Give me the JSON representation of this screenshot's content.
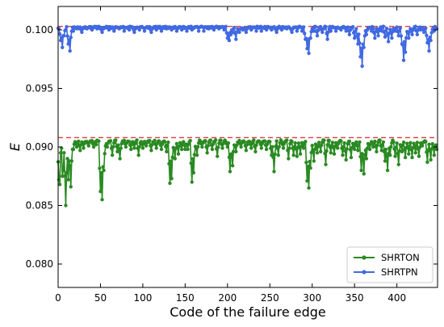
{
  "chart_data": {
    "type": "line",
    "title": "",
    "xlabel": "Code of the failure edge",
    "ylabel": "E",
    "xlim": [
      0,
      448
    ],
    "ylim": [
      0.078,
      0.102
    ],
    "x_ticks": [
      "0",
      "50",
      "100",
      "150",
      "200",
      "250",
      "300",
      "350",
      "400"
    ],
    "y_ticks": [
      "0.080",
      "0.085",
      "0.090",
      "0.095",
      "0.100"
    ],
    "grid": false,
    "legend_position": "lower-right",
    "reference_lines": [
      {
        "y": 0.1003,
        "color": "#e03c3c",
        "style": "dashed"
      },
      {
        "y": 0.0908,
        "color": "#e03c3c",
        "style": "dashed"
      }
    ],
    "series": [
      {
        "name": "SHRTON",
        "color": "#2a8a22",
        "baseline": 0.0906,
        "x_count": 448,
        "dips": [
          [
            1,
            0.0872
          ],
          [
            2,
            0.0868
          ],
          [
            3,
            0.0895
          ],
          [
            4,
            0.0899
          ],
          [
            5,
            0.0875
          ],
          [
            6,
            0.088
          ],
          [
            7,
            0.0895
          ],
          [
            9,
            0.085
          ],
          [
            10,
            0.0878
          ],
          [
            11,
            0.089
          ],
          [
            12,
            0.0872
          ],
          [
            13,
            0.0888
          ],
          [
            15,
            0.0866
          ],
          [
            18,
            0.0898
          ],
          [
            22,
            0.09
          ],
          [
            26,
            0.0897
          ],
          [
            30,
            0.0899
          ],
          [
            36,
            0.0901
          ],
          [
            42,
            0.09
          ],
          [
            45,
            0.0902
          ],
          [
            50,
            0.0862
          ],
          [
            52,
            0.0855
          ],
          [
            54,
            0.088
          ],
          [
            58,
            0.09
          ],
          [
            64,
            0.0893
          ],
          [
            70,
            0.0896
          ],
          [
            73,
            0.089
          ],
          [
            80,
            0.09
          ],
          [
            86,
            0.0898
          ],
          [
            90,
            0.0899
          ],
          [
            95,
            0.0893
          ],
          [
            100,
            0.0899
          ],
          [
            104,
            0.0901
          ],
          [
            110,
            0.0897
          ],
          [
            116,
            0.0899
          ],
          [
            122,
            0.0898
          ],
          [
            128,
            0.0896
          ],
          [
            132,
            0.0869
          ],
          [
            134,
            0.0873
          ],
          [
            138,
            0.089
          ],
          [
            142,
            0.0894
          ],
          [
            146,
            0.0898
          ],
          [
            150,
            0.0898
          ],
          [
            153,
            0.0898
          ],
          [
            158,
            0.087
          ],
          [
            160,
            0.0878
          ],
          [
            164,
            0.0893
          ],
          [
            170,
            0.09
          ],
          [
            176,
            0.0895
          ],
          [
            182,
            0.0898
          ],
          [
            188,
            0.0892
          ],
          [
            194,
            0.0899
          ],
          [
            200,
            0.09
          ],
          [
            203,
            0.0879
          ],
          [
            206,
            0.0884
          ],
          [
            210,
            0.0896
          ],
          [
            216,
            0.09
          ],
          [
            222,
            0.0897
          ],
          [
            228,
            0.0899
          ],
          [
            233,
            0.0896
          ],
          [
            240,
            0.0899
          ],
          [
            246,
            0.0898
          ],
          [
            252,
            0.0893
          ],
          [
            255,
            0.0879
          ],
          [
            260,
            0.0893
          ],
          [
            266,
            0.0899
          ],
          [
            272,
            0.089
          ],
          [
            278,
            0.0893
          ],
          [
            282,
            0.0892
          ],
          [
            286,
            0.0894
          ],
          [
            290,
            0.0899
          ],
          [
            294,
            0.0871
          ],
          [
            296,
            0.0865
          ],
          [
            298,
            0.0882
          ],
          [
            302,
            0.0888
          ],
          [
            306,
            0.0895
          ],
          [
            310,
            0.0896
          ],
          [
            316,
            0.0885
          ],
          [
            322,
            0.0895
          ],
          [
            326,
            0.0894
          ],
          [
            330,
            0.0899
          ],
          [
            336,
            0.0893
          ],
          [
            340,
            0.0889
          ],
          [
            346,
            0.0891
          ],
          [
            350,
            0.0898
          ],
          [
            354,
            0.0897
          ],
          [
            358,
            0.088
          ],
          [
            361,
            0.0877
          ],
          [
            364,
            0.089
          ],
          [
            368,
            0.0898
          ],
          [
            372,
            0.09
          ],
          [
            376,
            0.0896
          ],
          [
            382,
            0.0897
          ],
          [
            386,
            0.0888
          ],
          [
            389,
            0.088
          ],
          [
            392,
            0.0893
          ],
          [
            398,
            0.0892
          ],
          [
            402,
            0.0885
          ],
          [
            406,
            0.0896
          ],
          [
            410,
            0.0891
          ],
          [
            414,
            0.0894
          ],
          [
            418,
            0.0891
          ],
          [
            422,
            0.0895
          ],
          [
            426,
            0.0892
          ],
          [
            430,
            0.0901
          ],
          [
            436,
            0.0887
          ],
          [
            440,
            0.0889
          ],
          [
            444,
            0.0893
          ],
          [
            447,
            0.0898
          ]
        ]
      },
      {
        "name": "SHRTPN",
        "color": "#4169e1",
        "baseline": 0.1003,
        "x_count": 448,
        "dips": [
          [
            1,
            0.1001
          ],
          [
            3,
            0.0991
          ],
          [
            5,
            0.0985
          ],
          [
            7,
            0.0995
          ],
          [
            9,
            0.1
          ],
          [
            12,
            0.0988
          ],
          [
            14,
            0.0982
          ],
          [
            18,
            0.0999
          ],
          [
            22,
            0.1001
          ],
          [
            28,
            0.0998
          ],
          [
            34,
            0.1001
          ],
          [
            40,
            0.1
          ],
          [
            46,
            0.1001
          ],
          [
            52,
            0.0998
          ],
          [
            60,
            0.1
          ],
          [
            66,
            0.0999
          ],
          [
            72,
            0.1001
          ],
          [
            78,
            0.0999
          ],
          [
            84,
            0.1
          ],
          [
            90,
            0.0998
          ],
          [
            96,
            0.1
          ],
          [
            102,
            0.0999
          ],
          [
            110,
            0.0998
          ],
          [
            116,
            0.1
          ],
          [
            122,
            0.0999
          ],
          [
            128,
            0.1001
          ],
          [
            134,
            0.1
          ],
          [
            140,
            0.0999
          ],
          [
            146,
            0.1
          ],
          [
            152,
            0.0999
          ],
          [
            158,
            0.1
          ],
          [
            166,
            0.0999
          ],
          [
            172,
            0.0999
          ],
          [
            178,
            0.1001
          ],
          [
            184,
            0.1
          ],
          [
            190,
            0.1001
          ],
          [
            196,
            0.1
          ],
          [
            200,
            0.0993
          ],
          [
            202,
            0.0991
          ],
          [
            204,
            0.0996
          ],
          [
            206,
            0.0998
          ],
          [
            210,
            0.0992
          ],
          [
            214,
            0.0998
          ],
          [
            218,
            0.1
          ],
          [
            222,
            0.0998
          ],
          [
            228,
            0.1
          ],
          [
            234,
            0.0999
          ],
          [
            240,
            0.0999
          ],
          [
            246,
            0.1
          ],
          [
            252,
            0.1
          ],
          [
            258,
            0.0998
          ],
          [
            264,
            0.1
          ],
          [
            270,
            0.1001
          ],
          [
            276,
            0.0998
          ],
          [
            282,
            0.0999
          ],
          [
            288,
            0.0999
          ],
          [
            292,
            0.0992
          ],
          [
            294,
            0.0984
          ],
          [
            296,
            0.098
          ],
          [
            298,
            0.0993
          ],
          [
            302,
            0.0999
          ],
          [
            306,
            0.0995
          ],
          [
            312,
            0.0998
          ],
          [
            318,
            0.0992
          ],
          [
            322,
            0.0999
          ],
          [
            328,
            0.0999
          ],
          [
            334,
            0.1
          ],
          [
            340,
            0.0999
          ],
          [
            344,
            0.0996
          ],
          [
            350,
            0.0993
          ],
          [
            354,
            0.0988
          ],
          [
            357,
            0.0977
          ],
          [
            359,
            0.0969
          ],
          [
            361,
            0.0985
          ],
          [
            364,
            0.0996
          ],
          [
            370,
            0.0999
          ],
          [
            374,
            0.0993
          ],
          [
            378,
            0.0995
          ],
          [
            382,
            0.0999
          ],
          [
            386,
            0.0994
          ],
          [
            390,
            0.099
          ],
          [
            394,
            0.0993
          ],
          [
            398,
            0.0999
          ],
          [
            402,
            0.0995
          ],
          [
            406,
            0.0988
          ],
          [
            408,
            0.0974
          ],
          [
            410,
            0.0981
          ],
          [
            414,
            0.0993
          ],
          [
            418,
            0.0996
          ],
          [
            424,
            0.0996
          ],
          [
            428,
            0.1
          ],
          [
            432,
            0.0998
          ],
          [
            436,
            0.0989
          ],
          [
            438,
            0.0982
          ],
          [
            440,
            0.0991
          ],
          [
            444,
            0.0999
          ],
          [
            447,
            0.1001
          ]
        ]
      }
    ]
  }
}
